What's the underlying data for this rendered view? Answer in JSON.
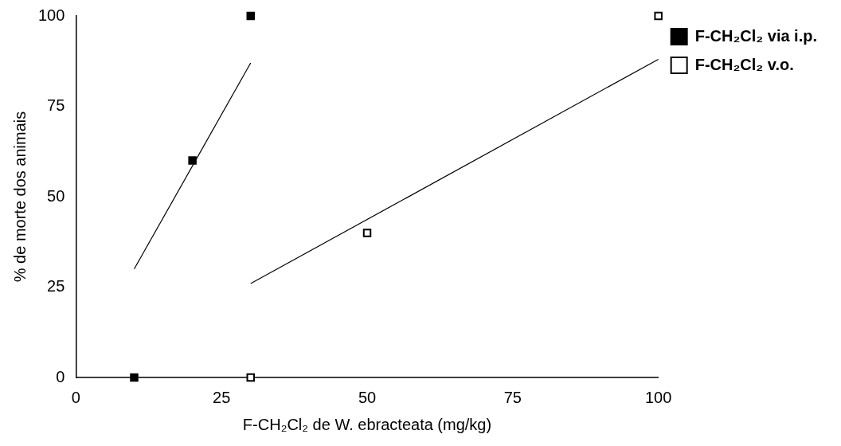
{
  "chart_data": {
    "type": "scatter",
    "xlabel": "F-CH₂Cl₂ de W. ebracteata (mg/kg)",
    "ylabel": "% de morte dos animais",
    "series": [
      {
        "name": "F-CH₂Cl₂ via i.p.",
        "color": "#000000",
        "x": [
          10,
          20,
          30
        ],
        "values": [
          0,
          60,
          100
        ]
      },
      {
        "name": "F-CH₂Cl₂ v.o.",
        "color": "#000000",
        "x": [
          30,
          50,
          100
        ],
        "values": [
          0,
          40,
          100
        ]
      },
      {
        "type": "line",
        "color": "#000000",
        "marker": "none",
        "x": [
          10,
          30
        ],
        "values": [
          30,
          87
        ]
      },
      {
        "type": "line",
        "color": "#000000",
        "marker": "none",
        "x": [
          30,
          100
        ],
        "values": [
          26,
          88
        ]
      }
    ],
    "marker": "square",
    "legend": "right",
    "grid": false,
    "xlim": [
      0,
      100
    ],
    "xticks": [
      0,
      25,
      50,
      75,
      100
    ],
    "ylim": [
      0,
      100
    ],
    "yticks": [
      0,
      25,
      50,
      75,
      100
    ]
  }
}
